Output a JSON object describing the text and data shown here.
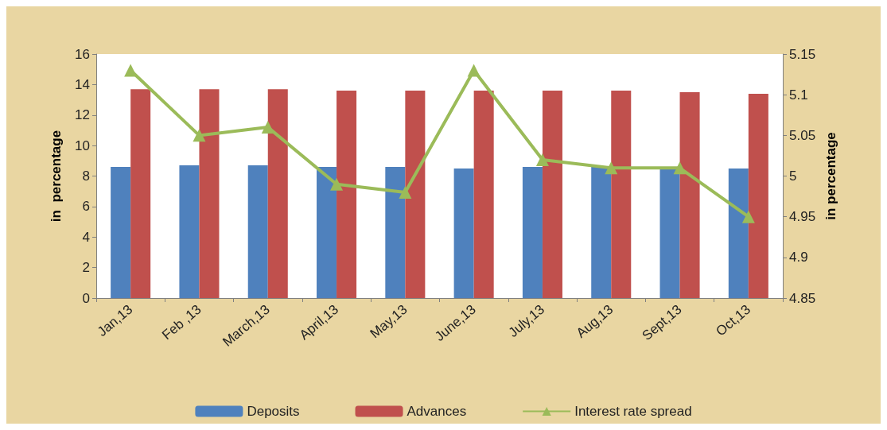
{
  "chart_data": {
    "type": "bar",
    "categories": [
      "Jan,13",
      "Feb ,13",
      "March,13",
      "April,13",
      "May,13",
      "June,13",
      "July,13",
      "Aug,13",
      "Sept,13",
      "Oct,13"
    ],
    "ylabel": "in  percentage",
    "y2label": "in percentage",
    "ylim": [
      0,
      16
    ],
    "yticks": [
      0,
      2,
      4,
      6,
      8,
      10,
      12,
      14,
      16
    ],
    "y2lim": [
      4.85,
      5.15
    ],
    "y2ticks": [
      4.85,
      4.9,
      4.95,
      5,
      5.05,
      5.1,
      5.15
    ],
    "grid": false,
    "legend": "bottom",
    "series": [
      {
        "name": "Deposits",
        "color": "#4f81bd",
        "values": [
          8.6,
          8.7,
          8.7,
          8.6,
          8.6,
          8.5,
          8.6,
          8.6,
          8.6,
          8.5
        ]
      },
      {
        "name": "Advances",
        "color": "#c0504d",
        "values": [
          13.7,
          13.7,
          13.7,
          13.6,
          13.6,
          13.6,
          13.6,
          13.6,
          13.5,
          13.4
        ]
      },
      {
        "name": "Interest rate spread",
        "type": "line",
        "axis": "y2",
        "marker": "triangle",
        "color": "#9bbb59",
        "values": [
          5.13,
          5.05,
          5.06,
          4.99,
          4.98,
          5.13,
          5.02,
          5.01,
          5.01,
          4.95
        ]
      }
    ]
  }
}
